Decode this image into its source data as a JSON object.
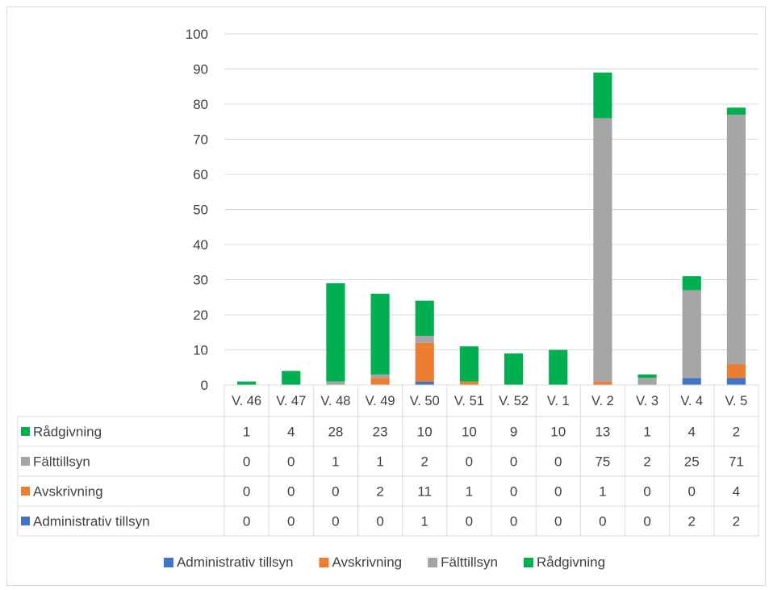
{
  "chart_data": {
    "type": "bar",
    "stacked": true,
    "categories": [
      "V. 46",
      "V. 47",
      "V. 48",
      "V. 49",
      "V. 50",
      "V. 51",
      "V. 52",
      "V. 1",
      "V. 2",
      "V. 3",
      "V. 4",
      "V. 5"
    ],
    "series": [
      {
        "name": "Administrativ tillsyn",
        "color": "#4472c4",
        "values": [
          0,
          0,
          0,
          0,
          1,
          0,
          0,
          0,
          0,
          0,
          2,
          2
        ]
      },
      {
        "name": "Avskrivning",
        "color": "#ed7d31",
        "values": [
          0,
          0,
          0,
          2,
          11,
          1,
          0,
          0,
          1,
          0,
          0,
          4
        ]
      },
      {
        "name": "Fälttillsyn",
        "color": "#a5a5a5",
        "values": [
          0,
          0,
          1,
          1,
          2,
          0,
          0,
          0,
          75,
          2,
          25,
          71
        ]
      },
      {
        "name": "Rådgivning",
        "color": "#00b050",
        "values": [
          1,
          4,
          28,
          23,
          10,
          10,
          9,
          10,
          13,
          1,
          4,
          2
        ]
      }
    ],
    "ylim": [
      0,
      100
    ],
    "yticks": [
      0,
      10,
      20,
      30,
      40,
      50,
      60,
      70,
      80,
      90,
      100
    ],
    "grid": true,
    "data_table": true,
    "legend_position": "bottom"
  }
}
